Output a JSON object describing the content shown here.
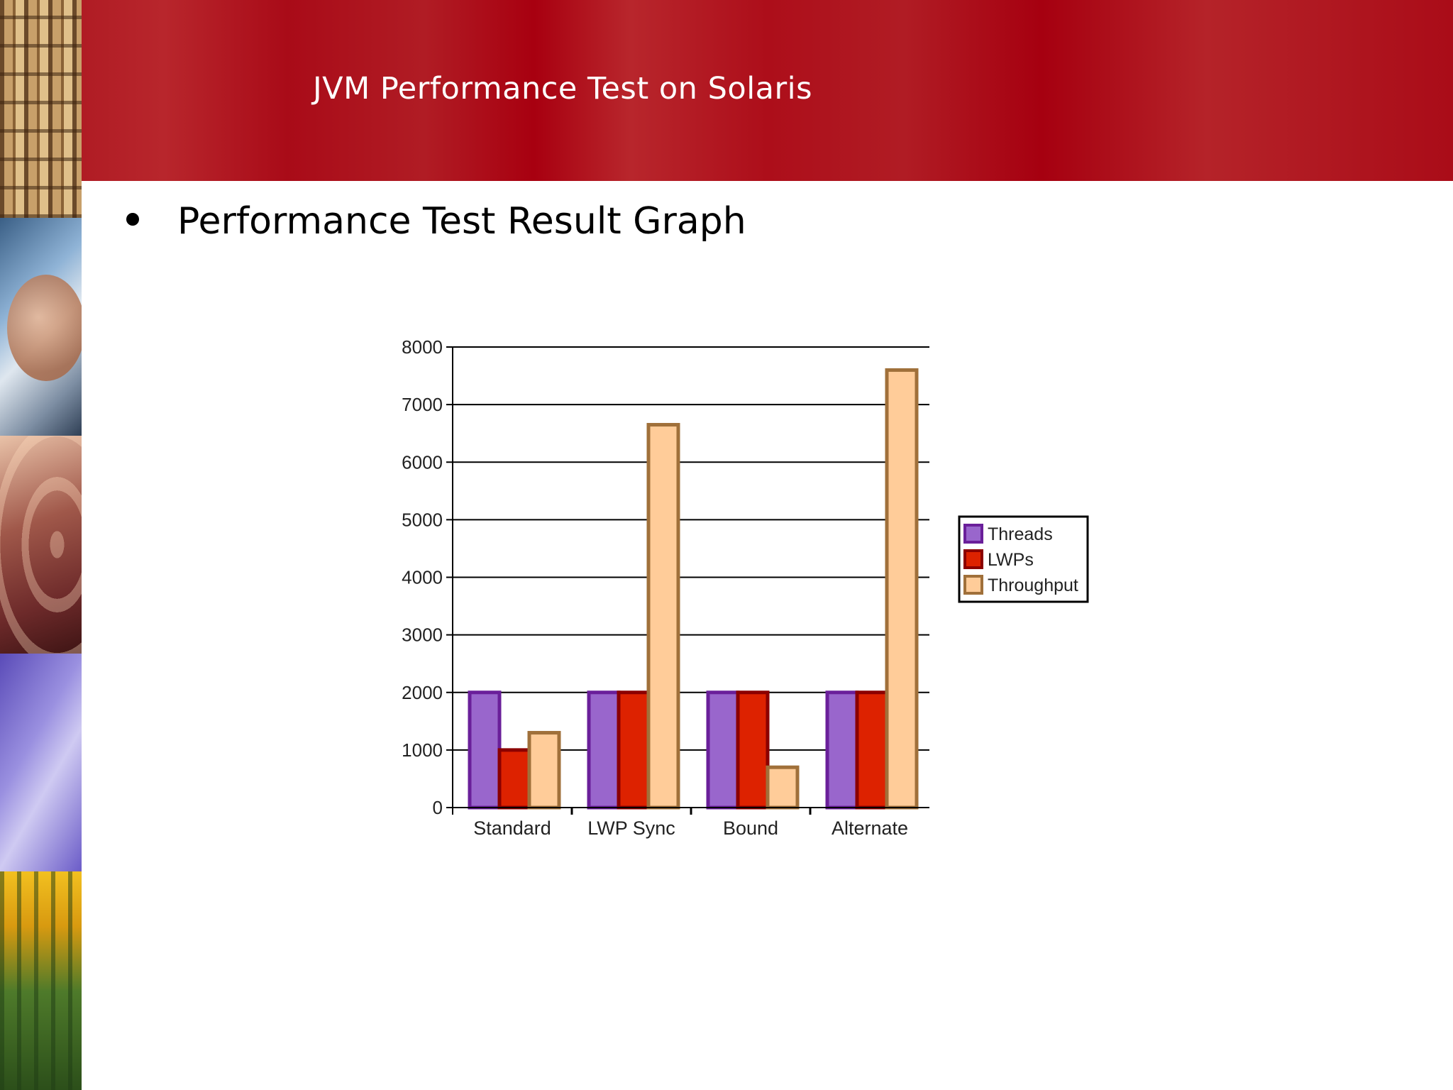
{
  "slide": {
    "title": "JVM Performance Test on Solaris",
    "bullet": "Performance Test Result Graph"
  },
  "colors": {
    "header_red": "#b01c24",
    "threads_fill": "#9966cc",
    "threads_border": "#6a1f9a",
    "lwps_fill": "#dd2200",
    "lwps_border": "#8b0000",
    "throughput_fill": "#ffcc99",
    "throughput_border": "#a0703a"
  },
  "chart_data": {
    "type": "bar",
    "categories": [
      "Standard",
      "LWP Sync",
      "Bound",
      "Alternate"
    ],
    "series": [
      {
        "name": "Threads",
        "values": [
          2000,
          2000,
          2000,
          2000
        ]
      },
      {
        "name": "LWPs",
        "values": [
          1000,
          2000,
          2000,
          2000
        ]
      },
      {
        "name": "Throughput",
        "values": [
          1300,
          6650,
          700,
          7600
        ]
      }
    ],
    "ylim": [
      0,
      8000
    ],
    "yticks": [
      0,
      1000,
      2000,
      3000,
      4000,
      5000,
      6000,
      7000,
      8000
    ],
    "grid": true,
    "legend": "right"
  }
}
